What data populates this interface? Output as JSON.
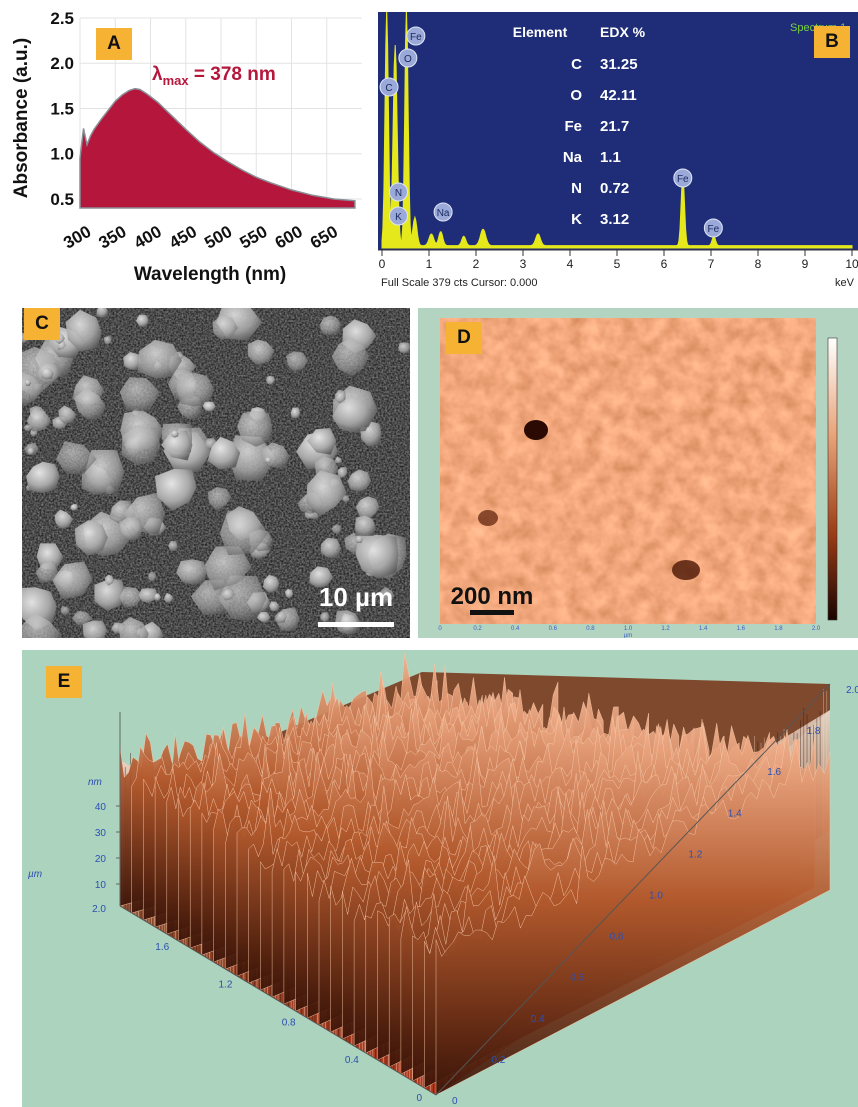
{
  "panels": {
    "a": {
      "label": "A"
    },
    "b": {
      "label": "B"
    },
    "c": {
      "label": "C",
      "scale_bar": "10 µm"
    },
    "d": {
      "label": "D",
      "scale_bar": "200 nm",
      "axis_unit": "µm",
      "x_ticks": [
        "0",
        "0.2",
        "0.4",
        "0.6",
        "0.8",
        "1.0",
        "1.2",
        "1.4",
        "1.6",
        "1.8",
        "2.0"
      ]
    },
    "e": {
      "label": "E",
      "z_unit": "nm",
      "y_unit": "µm",
      "z_ticks": [
        "40",
        "30",
        "20",
        "10"
      ],
      "left_ticks": [
        "2.0",
        "1.6",
        "1.2",
        "0.8",
        "0.4",
        "0"
      ],
      "bottom_ticks": [
        "0",
        "0.2",
        "0.4",
        "0.6",
        "0.8",
        "1.0",
        "1.2",
        "1.4",
        "1.6",
        "1.8",
        "2.0"
      ]
    }
  },
  "colors": {
    "absorbance_fill": "#b5173c",
    "edx_bg": "#1f2d78",
    "edx_trace": "#e5e81a",
    "afm_bg": "#abd3be",
    "tag": "#f6b233"
  },
  "chart_data": [
    {
      "type": "area",
      "title": "",
      "annotation": {
        "prefix": "λ",
        "subscript": "max",
        "text": " = 378 nm"
      },
      "xlabel": "Wavelength (nm)",
      "ylabel": "Absorbance (a.u.)",
      "xlim": [
        300,
        700
      ],
      "ylim": [
        0.4,
        2.5
      ],
      "x_ticks": [
        "300",
        "350",
        "400",
        "450",
        "500",
        "550",
        "600",
        "650"
      ],
      "y_ticks": [
        "0.5",
        "1.0",
        "1.5",
        "2.0",
        "2.5"
      ],
      "x": [
        300,
        305,
        310,
        315,
        320,
        330,
        340,
        350,
        360,
        370,
        378,
        385,
        395,
        410,
        430,
        450,
        470,
        490,
        510,
        530,
        550,
        570,
        600,
        630,
        660,
        690
      ],
      "values": [
        0.95,
        1.28,
        1.1,
        1.2,
        1.27,
        1.38,
        1.48,
        1.58,
        1.65,
        1.7,
        1.72,
        1.71,
        1.66,
        1.57,
        1.42,
        1.27,
        1.13,
        1.01,
        0.91,
        0.82,
        0.74,
        0.68,
        0.6,
        0.54,
        0.5,
        0.48
      ]
    },
    {
      "type": "line",
      "title": "",
      "header_label": "Spectrum 1",
      "footer": "Full Scale 379 cts Cursor: 0.000",
      "x_unit": "keV",
      "xlim": [
        0,
        10
      ],
      "x_ticks": [
        "0",
        "1",
        "2",
        "3",
        "4",
        "5",
        "6",
        "7",
        "8",
        "9",
        "10"
      ],
      "table": {
        "headers": [
          "Element",
          "EDX %"
        ],
        "rows": [
          [
            "C",
            "31.25"
          ],
          [
            "O",
            "42.11"
          ],
          [
            "Fe",
            "21.7"
          ],
          [
            "Na",
            "1.1"
          ],
          [
            "N",
            "0.72"
          ],
          [
            "K",
            "3.12"
          ]
        ]
      },
      "peaks": [
        {
          "label": "C",
          "x": 0.28,
          "y": 1.0
        },
        {
          "label": "N",
          "x": 0.39,
          "y": 0.2
        },
        {
          "label": "K",
          "x": 0.33,
          "y": 0.12
        },
        {
          "label": "O",
          "x": 0.52,
          "y": 1.0
        },
        {
          "label": "Fe",
          "x": 0.6,
          "y": 1.0
        },
        {
          "label": "Na",
          "x": 1.2,
          "y": 0.08
        },
        {
          "label": "Fe",
          "x": 6.4,
          "y": 0.25
        },
        {
          "label": "Fe",
          "x": 7.05,
          "y": 0.05
        }
      ]
    }
  ]
}
